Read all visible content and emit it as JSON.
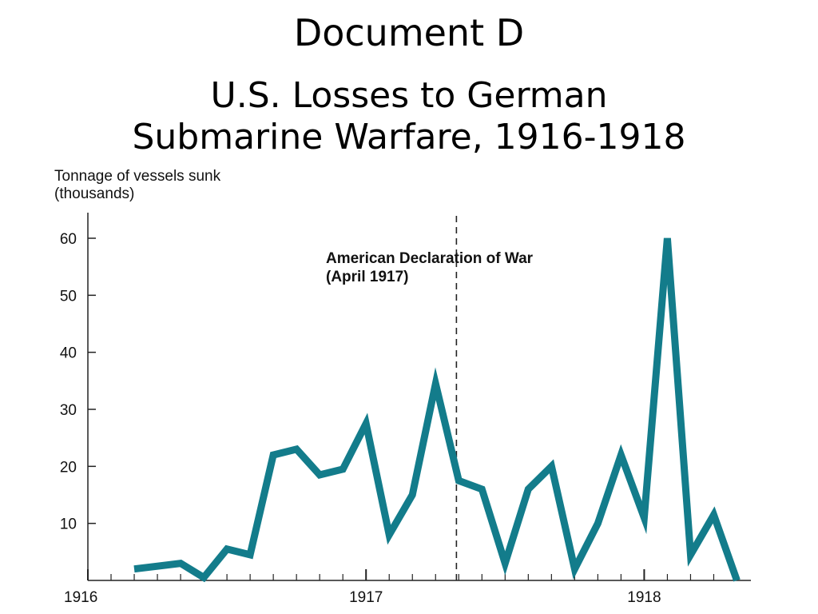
{
  "slide": {
    "heading": "Document D"
  },
  "chart_data": {
    "type": "line",
    "title_line1": "U.S. Losses to German",
    "title_line2": "Submarine Warfare, 1916-1918",
    "ylabel_line1": "Tonnage of vessels sunk",
    "ylabel_line2": "(thousands)",
    "xlabel": "",
    "y_ticks": [
      10,
      20,
      30,
      40,
      50,
      60
    ],
    "ylim": [
      0,
      60
    ],
    "x_tick_labels": [
      "1916",
      "1917",
      "1918"
    ],
    "x_tick_positions": [
      0,
      12,
      24
    ],
    "xlim": [
      0,
      28.5
    ],
    "series": [
      {
        "x": [
          2,
          3,
          4,
          5,
          6,
          7,
          8,
          9,
          10,
          11,
          12,
          13,
          14,
          15,
          16,
          17,
          18,
          19,
          20,
          21,
          22,
          23,
          24,
          25,
          26,
          27,
          28
        ],
        "values": [
          2,
          2.5,
          3,
          0.5,
          5.5,
          4.5,
          22,
          23,
          18.5,
          19.5,
          27.5,
          8,
          15,
          34.5,
          17.5,
          16,
          3,
          16,
          20,
          2,
          10,
          22,
          11,
          60,
          4.5,
          11.5,
          0
        ]
      }
    ],
    "annotation": {
      "line1": "American Declaration of War",
      "line2": "(April 1917)",
      "x": 15.9
    },
    "line_color": "#137c8b",
    "grid": false
  }
}
